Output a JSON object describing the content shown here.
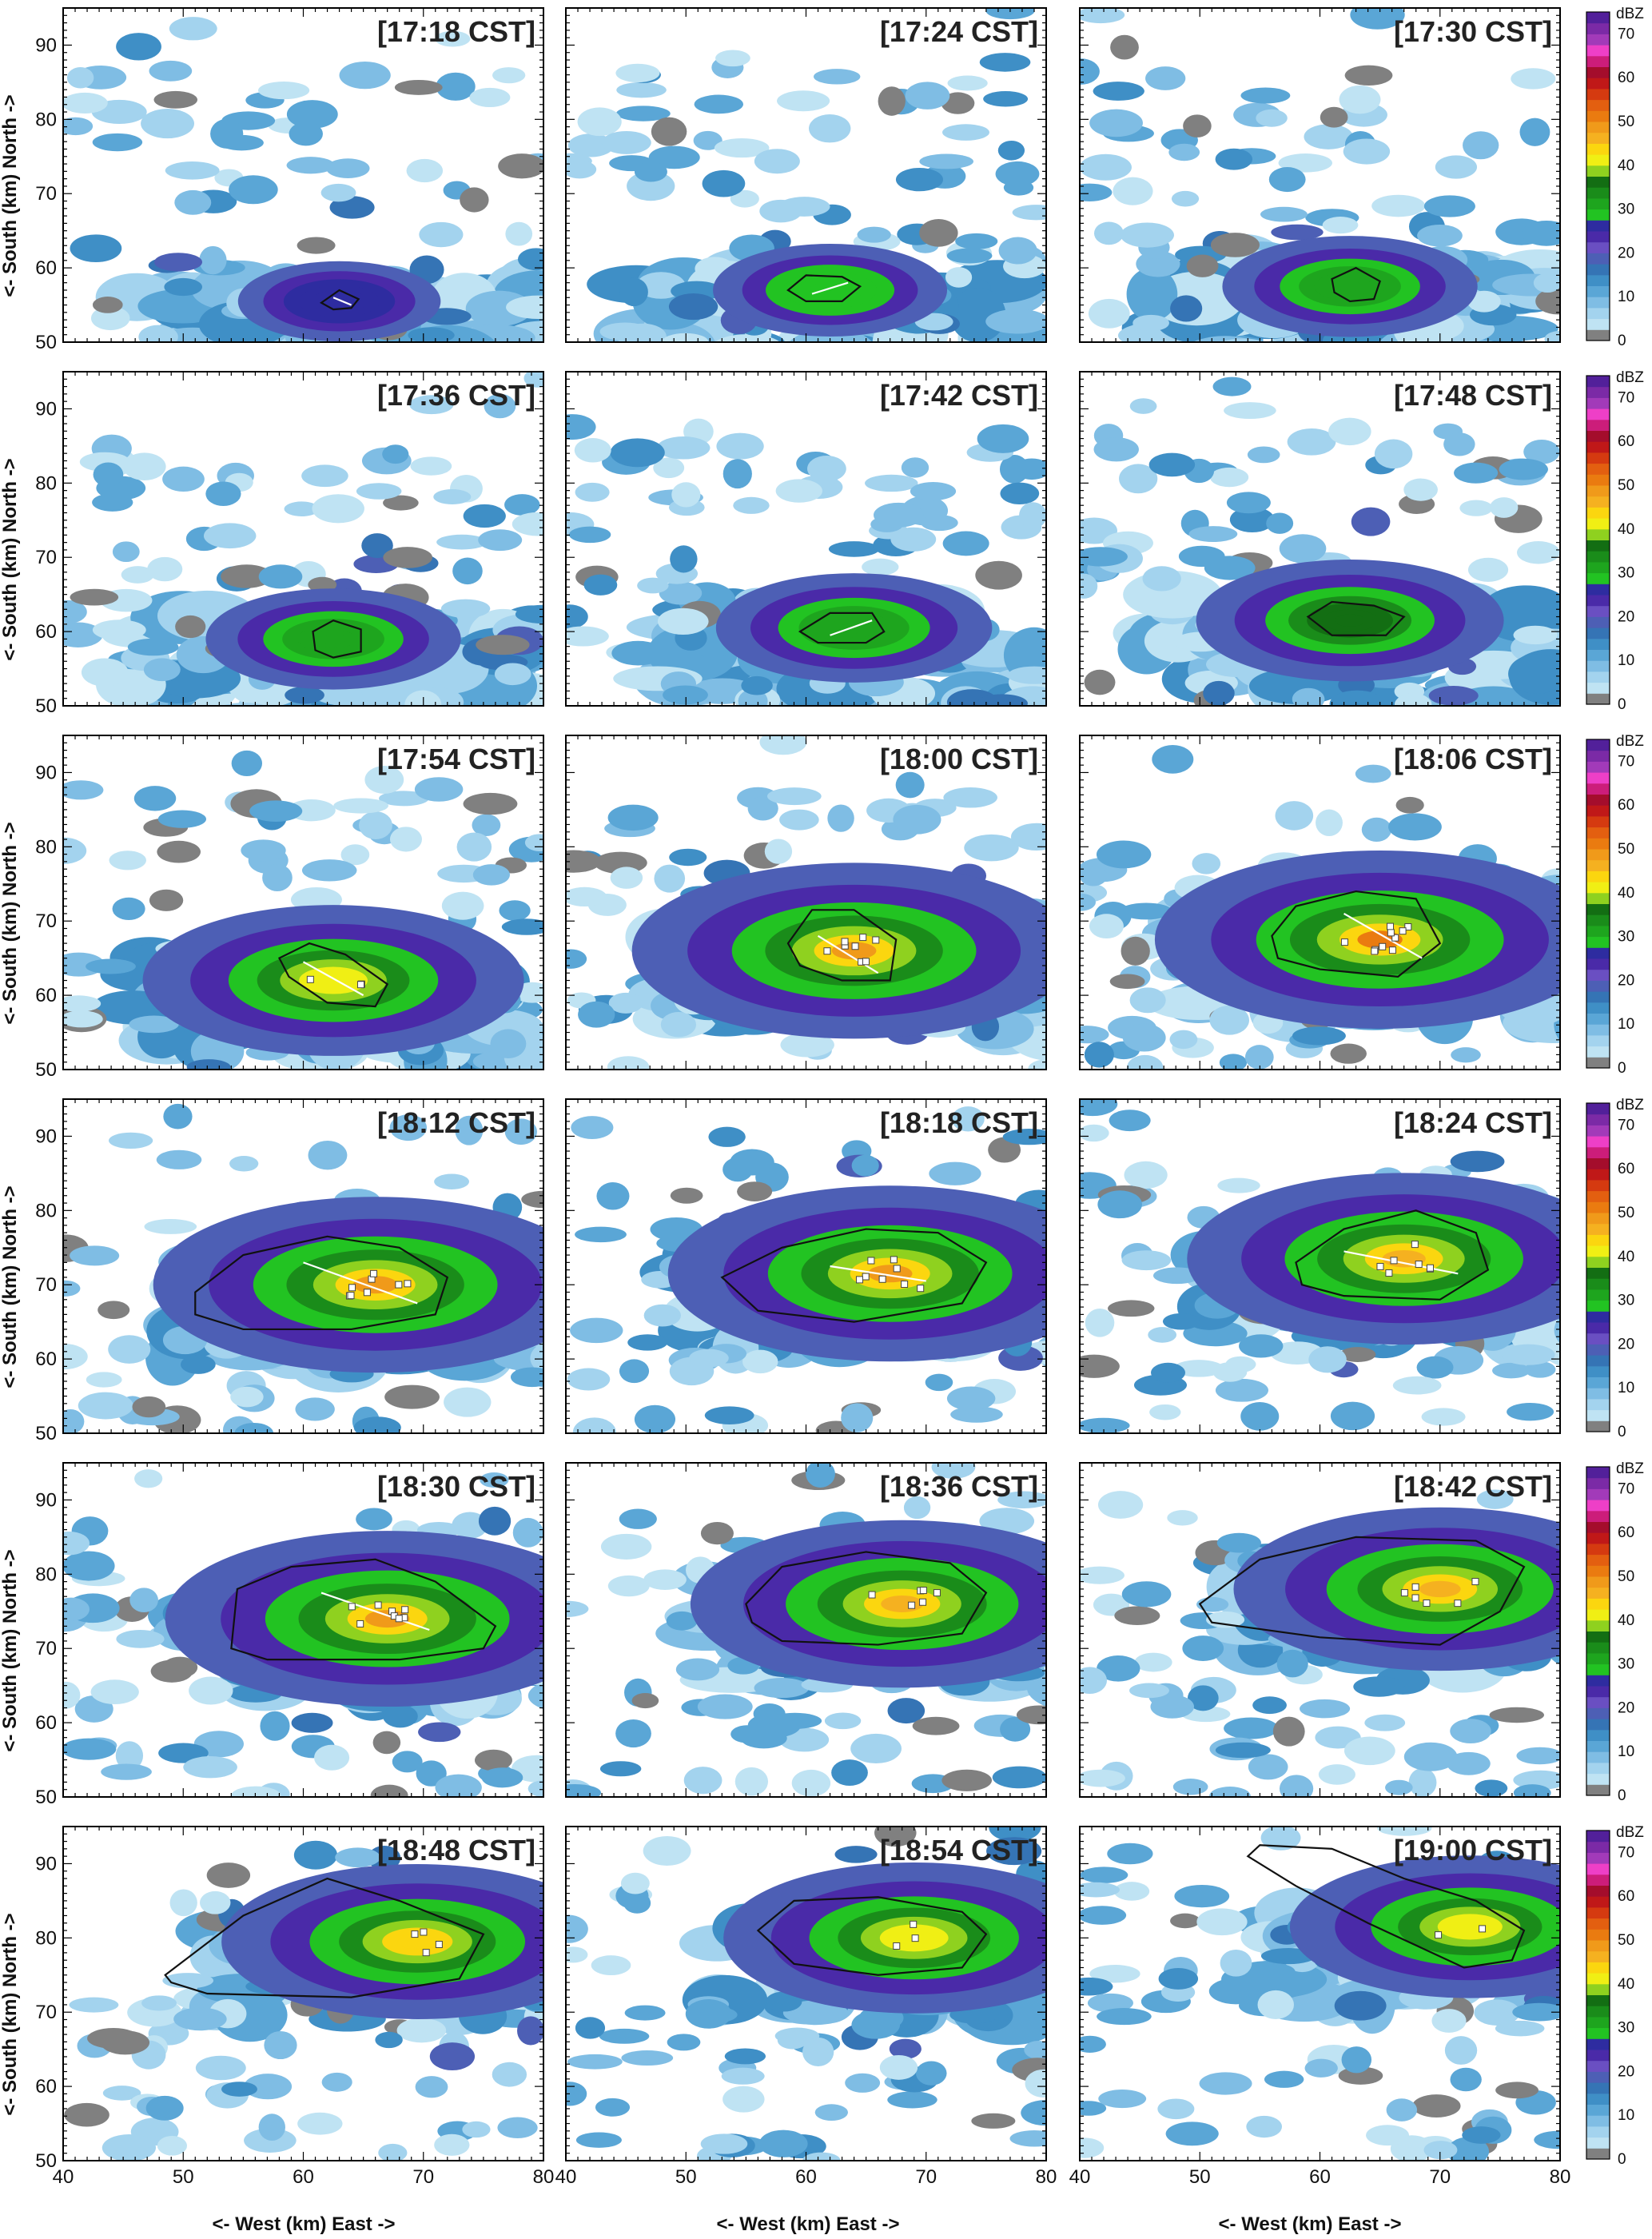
{
  "figure": {
    "panel_times": [
      "[17:18 CST]",
      "[17:24 CST]",
      "[17:30 CST]",
      "[17:36 CST]",
      "[17:42 CST]",
      "[17:48 CST]",
      "[17:54 CST]",
      "[18:00 CST]",
      "[18:06 CST]",
      "[18:12 CST]",
      "[18:18 CST]",
      "[18:24 CST]",
      "[18:30 CST]",
      "[18:36 CST]",
      "[18:42 CST]",
      "[18:48 CST]",
      "[18:54 CST]",
      "[19:00 CST]"
    ],
    "xlabel": "<- West (km) East ->",
    "ylabel": "<- South (km) North ->",
    "colorbar_unit": "dBZ"
  },
  "chart_data": {
    "type": "heatmap",
    "layout": "6 rows x 3 columns of radar reflectivity panels",
    "x_range": [
      40,
      80
    ],
    "y_range": [
      50,
      95
    ],
    "x_ticks": [
      40,
      50,
      60,
      70,
      80
    ],
    "x_tick_labels": [
      "40",
      "50",
      "60",
      "70",
      "80"
    ],
    "y_ticks": [
      50,
      60,
      70,
      80,
      90
    ],
    "y_tick_labels": [
      "50",
      "60",
      "70",
      "80",
      "90"
    ],
    "colorbar": {
      "ticks": [
        0,
        10,
        20,
        30,
        40,
        50,
        60,
        70
      ],
      "tick_labels": [
        "0",
        "10",
        "20",
        "30",
        "40",
        "50",
        "60",
        "70"
      ],
      "levels": [
        0,
        2.5,
        5,
        7.5,
        10,
        12.5,
        15,
        17.5,
        20,
        22.5,
        25,
        27.5,
        30,
        32.5,
        35,
        37.5,
        40,
        42.5,
        45,
        47.5,
        50,
        52.5,
        55,
        57.5,
        60,
        62.5,
        65,
        67.5,
        70,
        72.5,
        75
      ],
      "colors": [
        "#808080",
        "#bfe3f3",
        "#a3d3ee",
        "#7fbde4",
        "#5aa6d6",
        "#3f8fc6",
        "#3574b5",
        "#4d5fb5",
        "#6a4fc2",
        "#4a2aa8",
        "#2e2ca0",
        "#22c322",
        "#1ea51e",
        "#1a8c1a",
        "#136e13",
        "#8fd11f",
        "#f0ef14",
        "#fbd60f",
        "#f5b120",
        "#f09a1a",
        "#ea7b10",
        "#e35f10",
        "#d53a10",
        "#c01818",
        "#a40d2c",
        "#cc1d7a",
        "#ee3fc7",
        "#a23ab9",
        "#7b2aa6",
        "#52209a"
      ]
    },
    "panels": [
      {
        "time": "17:18",
        "storm_center": [
          63,
          55.5
        ],
        "max_dbz": 25,
        "track": [
          [
            62.5,
            56
          ],
          [
            64,
            55
          ]
        ],
        "outline": [
          [
            61.5,
            55.3
          ],
          [
            63,
            57
          ],
          [
            64.6,
            55.8
          ],
          [
            64,
            54.6
          ],
          [
            62.5,
            54.4
          ]
        ]
      },
      {
        "time": "17:24",
        "storm_center": [
          62,
          57
        ],
        "max_dbz": 28,
        "track": [
          [
            60.5,
            56.5
          ],
          [
            63.5,
            58
          ]
        ],
        "outline": [
          [
            58.5,
            57
          ],
          [
            60,
            59
          ],
          [
            63,
            58.8
          ],
          [
            64.5,
            57.5
          ],
          [
            63,
            55.5
          ],
          [
            60,
            55.5
          ]
        ]
      },
      {
        "time": "17:30",
        "storm_center": [
          62.5,
          57.5
        ],
        "max_dbz": 30,
        "track": [],
        "outline": [
          [
            61,
            58.5
          ],
          [
            63,
            60
          ],
          [
            65,
            58.2
          ],
          [
            64.5,
            55.8
          ],
          [
            62.5,
            55.5
          ],
          [
            61.2,
            56.7
          ]
        ]
      },
      {
        "time": "17:36",
        "storm_center": [
          62.5,
          59
        ],
        "max_dbz": 30,
        "track": [],
        "outline": [
          [
            60.8,
            60
          ],
          [
            62.5,
            61.5
          ],
          [
            64.8,
            60.3
          ],
          [
            64.8,
            57.3
          ],
          [
            62.5,
            56.5
          ],
          [
            61,
            57.5
          ]
        ]
      },
      {
        "time": "17:42",
        "storm_center": [
          64,
          60.5
        ],
        "max_dbz": 32,
        "track": [
          [
            62,
            59.5
          ],
          [
            65.5,
            61.5
          ]
        ],
        "outline": [
          [
            59.5,
            60
          ],
          [
            62,
            62.5
          ],
          [
            65.5,
            62.5
          ],
          [
            66.5,
            60
          ],
          [
            65,
            58.5
          ],
          [
            61,
            58.5
          ]
        ]
      },
      {
        "time": "17:48",
        "storm_center": [
          62.5,
          61.5
        ],
        "max_dbz": 35,
        "track": [],
        "outline": [
          [
            59,
            62
          ],
          [
            61,
            64
          ],
          [
            64.5,
            63.5
          ],
          [
            67,
            62
          ],
          [
            65.5,
            59.5
          ],
          [
            61,
            59.5
          ]
        ]
      },
      {
        "time": "17:54",
        "storm_center": [
          62.5,
          62
        ],
        "max_dbz": 42,
        "track": [
          [
            60,
            64.5
          ],
          [
            65,
            60
          ]
        ],
        "outline": [
          [
            58,
            65
          ],
          [
            60.5,
            67
          ],
          [
            63.5,
            65.5
          ],
          [
            67,
            61.5
          ],
          [
            66,
            58.5
          ],
          [
            62,
            59
          ],
          [
            58.8,
            62.5
          ]
        ]
      },
      {
        "time": "18:00",
        "storm_center": [
          64,
          66
        ],
        "max_dbz": 48,
        "track": [
          [
            61,
            68
          ],
          [
            66,
            63
          ]
        ],
        "outline": [
          [
            58.5,
            67
          ],
          [
            60.5,
            71.5
          ],
          [
            64,
            71.5
          ],
          [
            67.5,
            67.5
          ],
          [
            67,
            62
          ],
          [
            63,
            62
          ],
          [
            59.5,
            64
          ]
        ]
      },
      {
        "time": "18:06",
        "storm_center": [
          65,
          67.5
        ],
        "max_dbz": 50,
        "track": [
          [
            62,
            71
          ],
          [
            68.5,
            65
          ]
        ],
        "outline": [
          [
            56,
            68
          ],
          [
            58,
            72
          ],
          [
            63,
            74
          ],
          [
            68,
            73
          ],
          [
            70,
            67
          ],
          [
            66.5,
            62.5
          ],
          [
            60,
            63.5
          ],
          [
            56.5,
            65
          ]
        ]
      },
      {
        "time": "18:12",
        "storm_center": [
          66,
          70
        ],
        "max_dbz": 48,
        "track": [
          [
            60,
            73
          ],
          [
            69.5,
            67.5
          ]
        ],
        "outline": [
          [
            51,
            69
          ],
          [
            55,
            74
          ],
          [
            62,
            76.5
          ],
          [
            68,
            75
          ],
          [
            72,
            71
          ],
          [
            71,
            66
          ],
          [
            64,
            64
          ],
          [
            55,
            64
          ],
          [
            51,
            66
          ]
        ]
      },
      {
        "time": "18:18",
        "storm_center": [
          67,
          71.5
        ],
        "max_dbz": 48,
        "track": [
          [
            62,
            72.5
          ],
          [
            70,
            70.5
          ]
        ],
        "outline": [
          [
            53,
            71
          ],
          [
            58,
            75
          ],
          [
            65,
            77.5
          ],
          [
            71,
            77
          ],
          [
            75,
            73
          ],
          [
            73,
            67.5
          ],
          [
            64,
            65
          ],
          [
            56,
            66.5
          ]
        ]
      },
      {
        "time": "18:24",
        "storm_center": [
          67,
          73.5
        ],
        "max_dbz": 47,
        "track": [
          [
            62,
            74.5
          ],
          [
            71.5,
            71.5
          ]
        ],
        "outline": [
          [
            58,
            73
          ],
          [
            62,
            77.5
          ],
          [
            68,
            80
          ],
          [
            73,
            77
          ],
          [
            74,
            72
          ],
          [
            70,
            68
          ],
          [
            62,
            68.5
          ],
          [
            58.5,
            70
          ]
        ]
      },
      {
        "time": "18:30",
        "storm_center": [
          67,
          74
        ],
        "max_dbz": 48,
        "track": [
          [
            61.5,
            77.5
          ],
          [
            70.5,
            72.5
          ]
        ],
        "outline": [
          [
            54,
            70
          ],
          [
            54.5,
            78
          ],
          [
            59,
            81
          ],
          [
            66,
            82
          ],
          [
            71,
            79
          ],
          [
            76,
            73
          ],
          [
            75,
            70
          ],
          [
            68,
            68.5
          ],
          [
            57,
            68.5
          ]
        ]
      },
      {
        "time": "18:36",
        "storm_center": [
          68,
          76
        ],
        "max_dbz": 46,
        "track": [],
        "outline": [
          [
            55,
            76
          ],
          [
            58,
            81
          ],
          [
            65,
            83
          ],
          [
            72,
            81.5
          ],
          [
            75,
            77.5
          ],
          [
            73,
            72
          ],
          [
            66,
            70.5
          ],
          [
            58,
            71
          ],
          [
            55.5,
            73.5
          ]
        ]
      },
      {
        "time": "18:42",
        "storm_center": [
          70,
          78
        ],
        "max_dbz": 45,
        "track": [],
        "outline": [
          [
            50,
            76
          ],
          [
            55,
            82
          ],
          [
            63,
            85
          ],
          [
            73,
            84.5
          ],
          [
            77,
            81
          ],
          [
            75,
            75
          ],
          [
            70,
            70.5
          ],
          [
            60,
            71.5
          ],
          [
            51,
            73.5
          ]
        ]
      },
      {
        "time": "18:48",
        "storm_center": [
          69.5,
          79.5
        ],
        "max_dbz": 43,
        "track": [],
        "outline": [
          [
            48.5,
            75
          ],
          [
            55,
            83
          ],
          [
            62,
            88
          ],
          [
            68,
            85
          ],
          [
            75,
            80.5
          ],
          [
            73,
            74.5
          ],
          [
            64,
            72
          ],
          [
            52,
            72.5
          ],
          [
            49,
            74
          ]
        ]
      },
      {
        "time": "18:54",
        "storm_center": [
          69,
          80
        ],
        "max_dbz": 42,
        "track": [],
        "outline": [
          [
            56,
            81
          ],
          [
            59,
            85
          ],
          [
            66,
            85.5
          ],
          [
            73,
            83.5
          ],
          [
            75,
            80.5
          ],
          [
            73,
            76
          ],
          [
            66,
            75
          ],
          [
            59,
            76.5
          ]
        ]
      },
      {
        "time": "19:00",
        "storm_center": [
          72.5,
          81.5
        ],
        "max_dbz": 40,
        "track": [],
        "outline": [
          [
            54,
            91
          ],
          [
            58,
            87
          ],
          [
            64,
            82
          ],
          [
            72,
            76
          ],
          [
            76,
            77
          ],
          [
            77,
            81
          ],
          [
            73,
            85
          ],
          [
            67,
            88
          ],
          [
            61,
            92
          ],
          [
            55,
            92.5
          ]
        ]
      }
    ]
  }
}
